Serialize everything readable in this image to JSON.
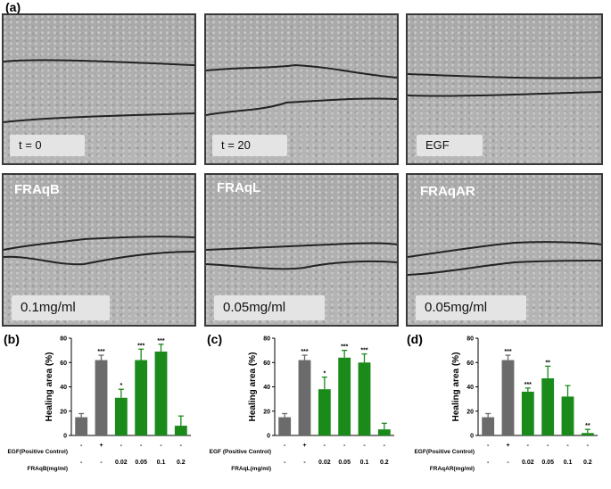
{
  "figure_label": "(a)",
  "micrographs": [
    {
      "tag": "t = 0",
      "overlay": ""
    },
    {
      "tag": "t = 20",
      "overlay": ""
    },
    {
      "tag": "EGF",
      "overlay": ""
    },
    {
      "tag": "0.1mg/ml",
      "overlay": "FRAqB"
    },
    {
      "tag": "0.05mg/ml",
      "overlay": "FRAqL"
    },
    {
      "tag": "0.05mg/ml",
      "overlay": "FRAqAR"
    }
  ],
  "colors": {
    "control": "#6b6b6b",
    "treatment": "#1a8a1a"
  },
  "chart_data": [
    {
      "panel": "(b)",
      "type": "bar",
      "ylabel": "Healing area (%)",
      "ylim": [
        0,
        80
      ],
      "yticks": [
        0,
        20,
        40,
        60,
        80
      ],
      "values": [
        15,
        62,
        31,
        62,
        69,
        8
      ],
      "errors": [
        3,
        4,
        7,
        9,
        6,
        8
      ],
      "significance": [
        "",
        "***",
        "*",
        "***",
        "***",
        ""
      ],
      "bar_colors": [
        "control",
        "control",
        "treatment",
        "treatment",
        "treatment",
        "treatment"
      ],
      "row1_label": "EGF(Positive Control)",
      "row1_values": [
        "-",
        "+",
        "-",
        "-",
        "-",
        "-"
      ],
      "row2_label": "FRAqB(mg/ml)",
      "row2_values": [
        "-",
        "-",
        "0.02",
        "0.05",
        "0.1",
        "0.2"
      ]
    },
    {
      "panel": "(c)",
      "type": "bar",
      "ylabel": "Healing area (%)",
      "ylim": [
        0,
        80
      ],
      "yticks": [
        0,
        20,
        40,
        60,
        80
      ],
      "values": [
        15,
        62,
        38,
        64,
        60,
        5
      ],
      "errors": [
        3,
        4,
        10,
        6,
        7,
        5
      ],
      "significance": [
        "",
        "***",
        "*",
        "***",
        "***",
        ""
      ],
      "bar_colors": [
        "control",
        "control",
        "treatment",
        "treatment",
        "treatment",
        "treatment"
      ],
      "row1_label": "EGF (Positive Control)",
      "row1_values": [
        "-",
        "+",
        "-",
        "-",
        "-",
        "-"
      ],
      "row2_label": "FRAqL(mg/ml)",
      "row2_values": [
        "-",
        "-",
        "0.02",
        "0.05",
        "0.1",
        "0.2"
      ]
    },
    {
      "panel": "(d)",
      "type": "bar",
      "ylabel": "Healing area (%)",
      "ylim": [
        0,
        80
      ],
      "yticks": [
        0,
        20,
        40,
        60,
        80
      ],
      "values": [
        15,
        62,
        36,
        47,
        32,
        2
      ],
      "errors": [
        3,
        4,
        3,
        10,
        9,
        3
      ],
      "significance": [
        "",
        "***",
        "***",
        "**",
        "",
        "**"
      ],
      "bar_colors": [
        "control",
        "control",
        "treatment",
        "treatment",
        "treatment",
        "treatment"
      ],
      "row1_label": "EGF(Positive Control)",
      "row1_values": [
        "-",
        "+",
        "-",
        "-",
        "-",
        "-"
      ],
      "row2_label": "FRAqAR(mg/ml)",
      "row2_values": [
        "-",
        "-",
        "0.02",
        "0.05",
        "0.1",
        "0.2"
      ]
    }
  ]
}
